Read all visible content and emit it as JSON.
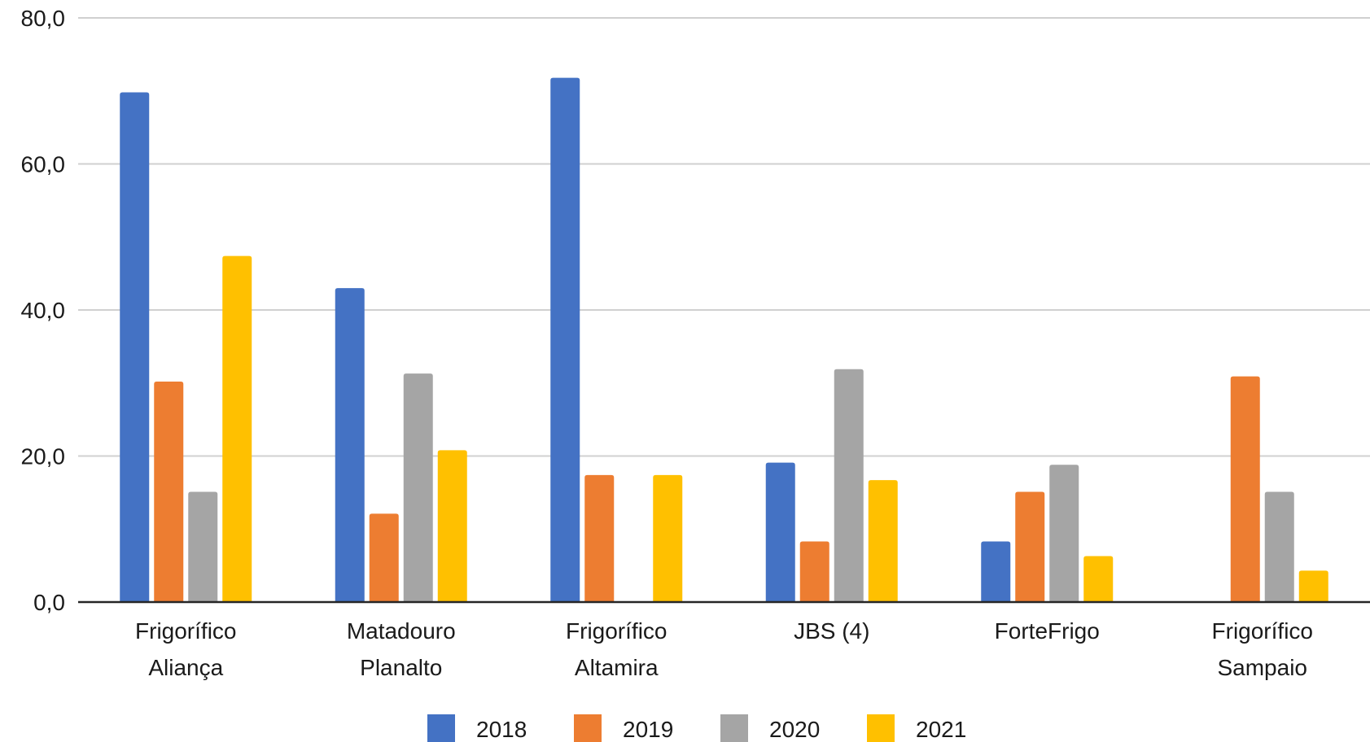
{
  "chart_data": {
    "type": "bar",
    "title": "",
    "xlabel": "",
    "ylabel": "",
    "ylim": [
      0,
      80
    ],
    "yticks": [
      "0,0",
      "20,0",
      "40,0",
      "60,0",
      "80,0"
    ],
    "ytick_values": [
      0,
      20,
      40,
      60,
      80
    ],
    "grid": true,
    "legend_position": "bottom",
    "categories": [
      [
        "Frigorífico",
        "Aliança"
      ],
      [
        "Matadouro",
        "Planalto"
      ],
      [
        "Frigorífico",
        "Altamira"
      ],
      [
        "JBS (4)"
      ],
      [
        "ForteFrigo"
      ],
      [
        "Frigorífico",
        "Sampaio"
      ]
    ],
    "series": [
      {
        "name": "2018",
        "color": "#4472C4",
        "values": [
          69.8,
          43.0,
          71.8,
          19.1,
          8.3,
          null
        ]
      },
      {
        "name": "2019",
        "color": "#ED7D31",
        "values": [
          30.2,
          12.1,
          17.4,
          8.3,
          15.1,
          30.9
        ]
      },
      {
        "name": "2020",
        "color": "#A5A5A5",
        "values": [
          15.1,
          31.3,
          null,
          31.9,
          18.8,
          15.1
        ]
      },
      {
        "name": "2021",
        "color": "#FFC000",
        "values": [
          47.4,
          20.8,
          17.4,
          16.7,
          6.3,
          4.3
        ]
      }
    ]
  }
}
